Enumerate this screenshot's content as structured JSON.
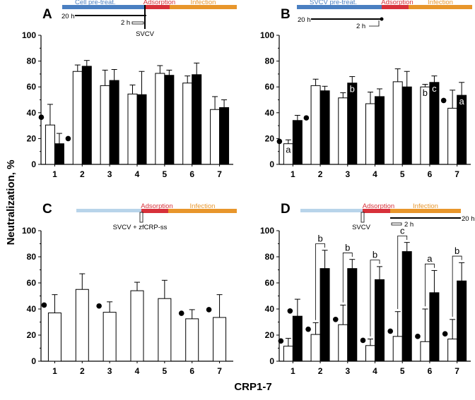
{
  "figure": {
    "ylabel": "Neutralization, %",
    "xlabel": "CRP1-7"
  },
  "colors": {
    "blue": "#4a7fc1",
    "light_blue": "#b8d4ea",
    "red": "#d7313a",
    "orange": "#e8962b"
  },
  "panels": [
    {
      "label": "A",
      "timeline": {
        "stage1": "Cell pre-treat.",
        "stage2": "Adsorption",
        "stage3": "Infection",
        "time1": "20 h",
        "time2": "2 h",
        "marker": "SVCV"
      }
    },
    {
      "label": "B",
      "timeline": {
        "stage1": "SVCV pre-treat.",
        "stage2": "Adsorption",
        "stage3": "Infection",
        "time1": "20 h",
        "time2": "2 h"
      }
    },
    {
      "label": "C",
      "timeline": {
        "stage2": "Adsorption",
        "stage3": "Infection",
        "marker": "SVCV + zfCRP-ss"
      }
    },
    {
      "label": "D",
      "timeline": {
        "stage2": "Adsorption",
        "stage3": "Infection",
        "time1": "20 h",
        "time2": "2 h",
        "marker": "SVCV"
      }
    }
  ],
  "chart_data": [
    {
      "type": "bar",
      "panel": "A",
      "categories": [
        "1",
        "2",
        "3",
        "4",
        "5",
        "6",
        "7"
      ],
      "yticks": [
        "0",
        "20",
        "40",
        "60",
        "80",
        "100"
      ],
      "ylim": [
        0,
        100
      ],
      "series": [
        {
          "values": [
            30.5,
            72,
            61,
            54.5,
            70.5,
            63,
            42.5
          ],
          "errors": [
            16,
            5,
            12,
            7,
            6,
            5.5,
            10
          ],
          "color": "white"
        },
        {
          "values": [
            16,
            76,
            65,
            54,
            69,
            69.5,
            44
          ],
          "errors": [
            8,
            4.5,
            8.5,
            18,
            4,
            9,
            6
          ],
          "color": "black"
        }
      ],
      "markers": [
        {
          "index": 0,
          "bar": 0
        },
        {
          "index": 0,
          "bar": 1
        }
      ],
      "letters": []
    },
    {
      "type": "bar",
      "panel": "B",
      "categories": [
        "1",
        "2",
        "3",
        "4",
        "5",
        "6",
        "7"
      ],
      "yticks": [
        "0",
        "20",
        "40",
        "60",
        "80",
        "100"
      ],
      "ylim": [
        0,
        100
      ],
      "series": [
        {
          "values": [
            16,
            61,
            51.5,
            47,
            64,
            60,
            43.5
          ],
          "errors": [
            3,
            5,
            4,
            9,
            10,
            2,
            14
          ],
          "color": "white"
        },
        {
          "values": [
            34,
            57,
            63,
            52.5,
            60,
            63.5,
            53.5
          ],
          "errors": [
            4,
            3.5,
            5,
            6,
            12,
            5,
            10
          ],
          "color": "black"
        }
      ],
      "markers": [
        {
          "index": 0,
          "bar": 0
        },
        {
          "index": 0,
          "bar": 1
        },
        {
          "index": 6,
          "bar": 0
        }
      ],
      "letters": [
        {
          "index": 0,
          "bar": 0,
          "text": "a"
        },
        {
          "index": 2,
          "bar": 1,
          "text": "b"
        },
        {
          "index": 5,
          "bar": 0,
          "text": "b"
        },
        {
          "index": 5,
          "bar": 1,
          "text": "c"
        },
        {
          "index": 6,
          "bar": 1,
          "text": "a"
        }
      ]
    },
    {
      "type": "bar",
      "panel": "C",
      "categories": [
        "1",
        "2",
        "3",
        "4",
        "5",
        "6",
        "7"
      ],
      "yticks": [
        "0",
        "20",
        "40",
        "60",
        "80",
        "100"
      ],
      "ylim": [
        0,
        100
      ],
      "series": [
        {
          "values": [
            37,
            55,
            37.5,
            54,
            48,
            32.5,
            33.5
          ],
          "errors": [
            14,
            12,
            8,
            6.5,
            14,
            7,
            17.5
          ],
          "color": "white"
        }
      ],
      "markers": [
        {
          "index": 0,
          "bar": 0
        },
        {
          "index": 2,
          "bar": 0
        },
        {
          "index": 5,
          "bar": 0
        },
        {
          "index": 6,
          "bar": 0
        }
      ],
      "letters": []
    },
    {
      "type": "bar",
      "panel": "D",
      "categories": [
        "1",
        "2",
        "3",
        "4",
        "5",
        "6",
        "7"
      ],
      "yticks": [
        "0",
        "20",
        "40",
        "60",
        "80",
        "100"
      ],
      "ylim": [
        0,
        100
      ],
      "series": [
        {
          "values": [
            11.5,
            20.5,
            28,
            12,
            19,
            15,
            17
          ],
          "errors": [
            6,
            9,
            15,
            5,
            19,
            25,
            15
          ],
          "color": "white"
        },
        {
          "values": [
            34.5,
            71,
            71,
            62.5,
            84,
            52.5,
            61.5
          ],
          "errors": [
            13,
            14,
            7,
            10,
            7,
            17,
            14
          ],
          "color": "black"
        }
      ],
      "markers": [
        {
          "index": 0,
          "bar": 0
        },
        {
          "index": 0,
          "bar": 1
        },
        {
          "index": 1,
          "bar": 0
        },
        {
          "index": 2,
          "bar": 0
        },
        {
          "index": 3,
          "bar": 0
        },
        {
          "index": 4,
          "bar": 0
        },
        {
          "index": 5,
          "bar": 0
        },
        {
          "index": 6,
          "bar": 0
        }
      ],
      "letters": [
        {
          "index": 1,
          "text": "b",
          "bracket": true
        },
        {
          "index": 2,
          "text": "b",
          "bracket": true
        },
        {
          "index": 3,
          "text": "b",
          "bracket": true
        },
        {
          "index": 4,
          "text": "c",
          "bracket": true
        },
        {
          "index": 5,
          "text": "a",
          "bracket": true
        },
        {
          "index": 6,
          "text": "b",
          "bracket": true
        }
      ]
    }
  ]
}
